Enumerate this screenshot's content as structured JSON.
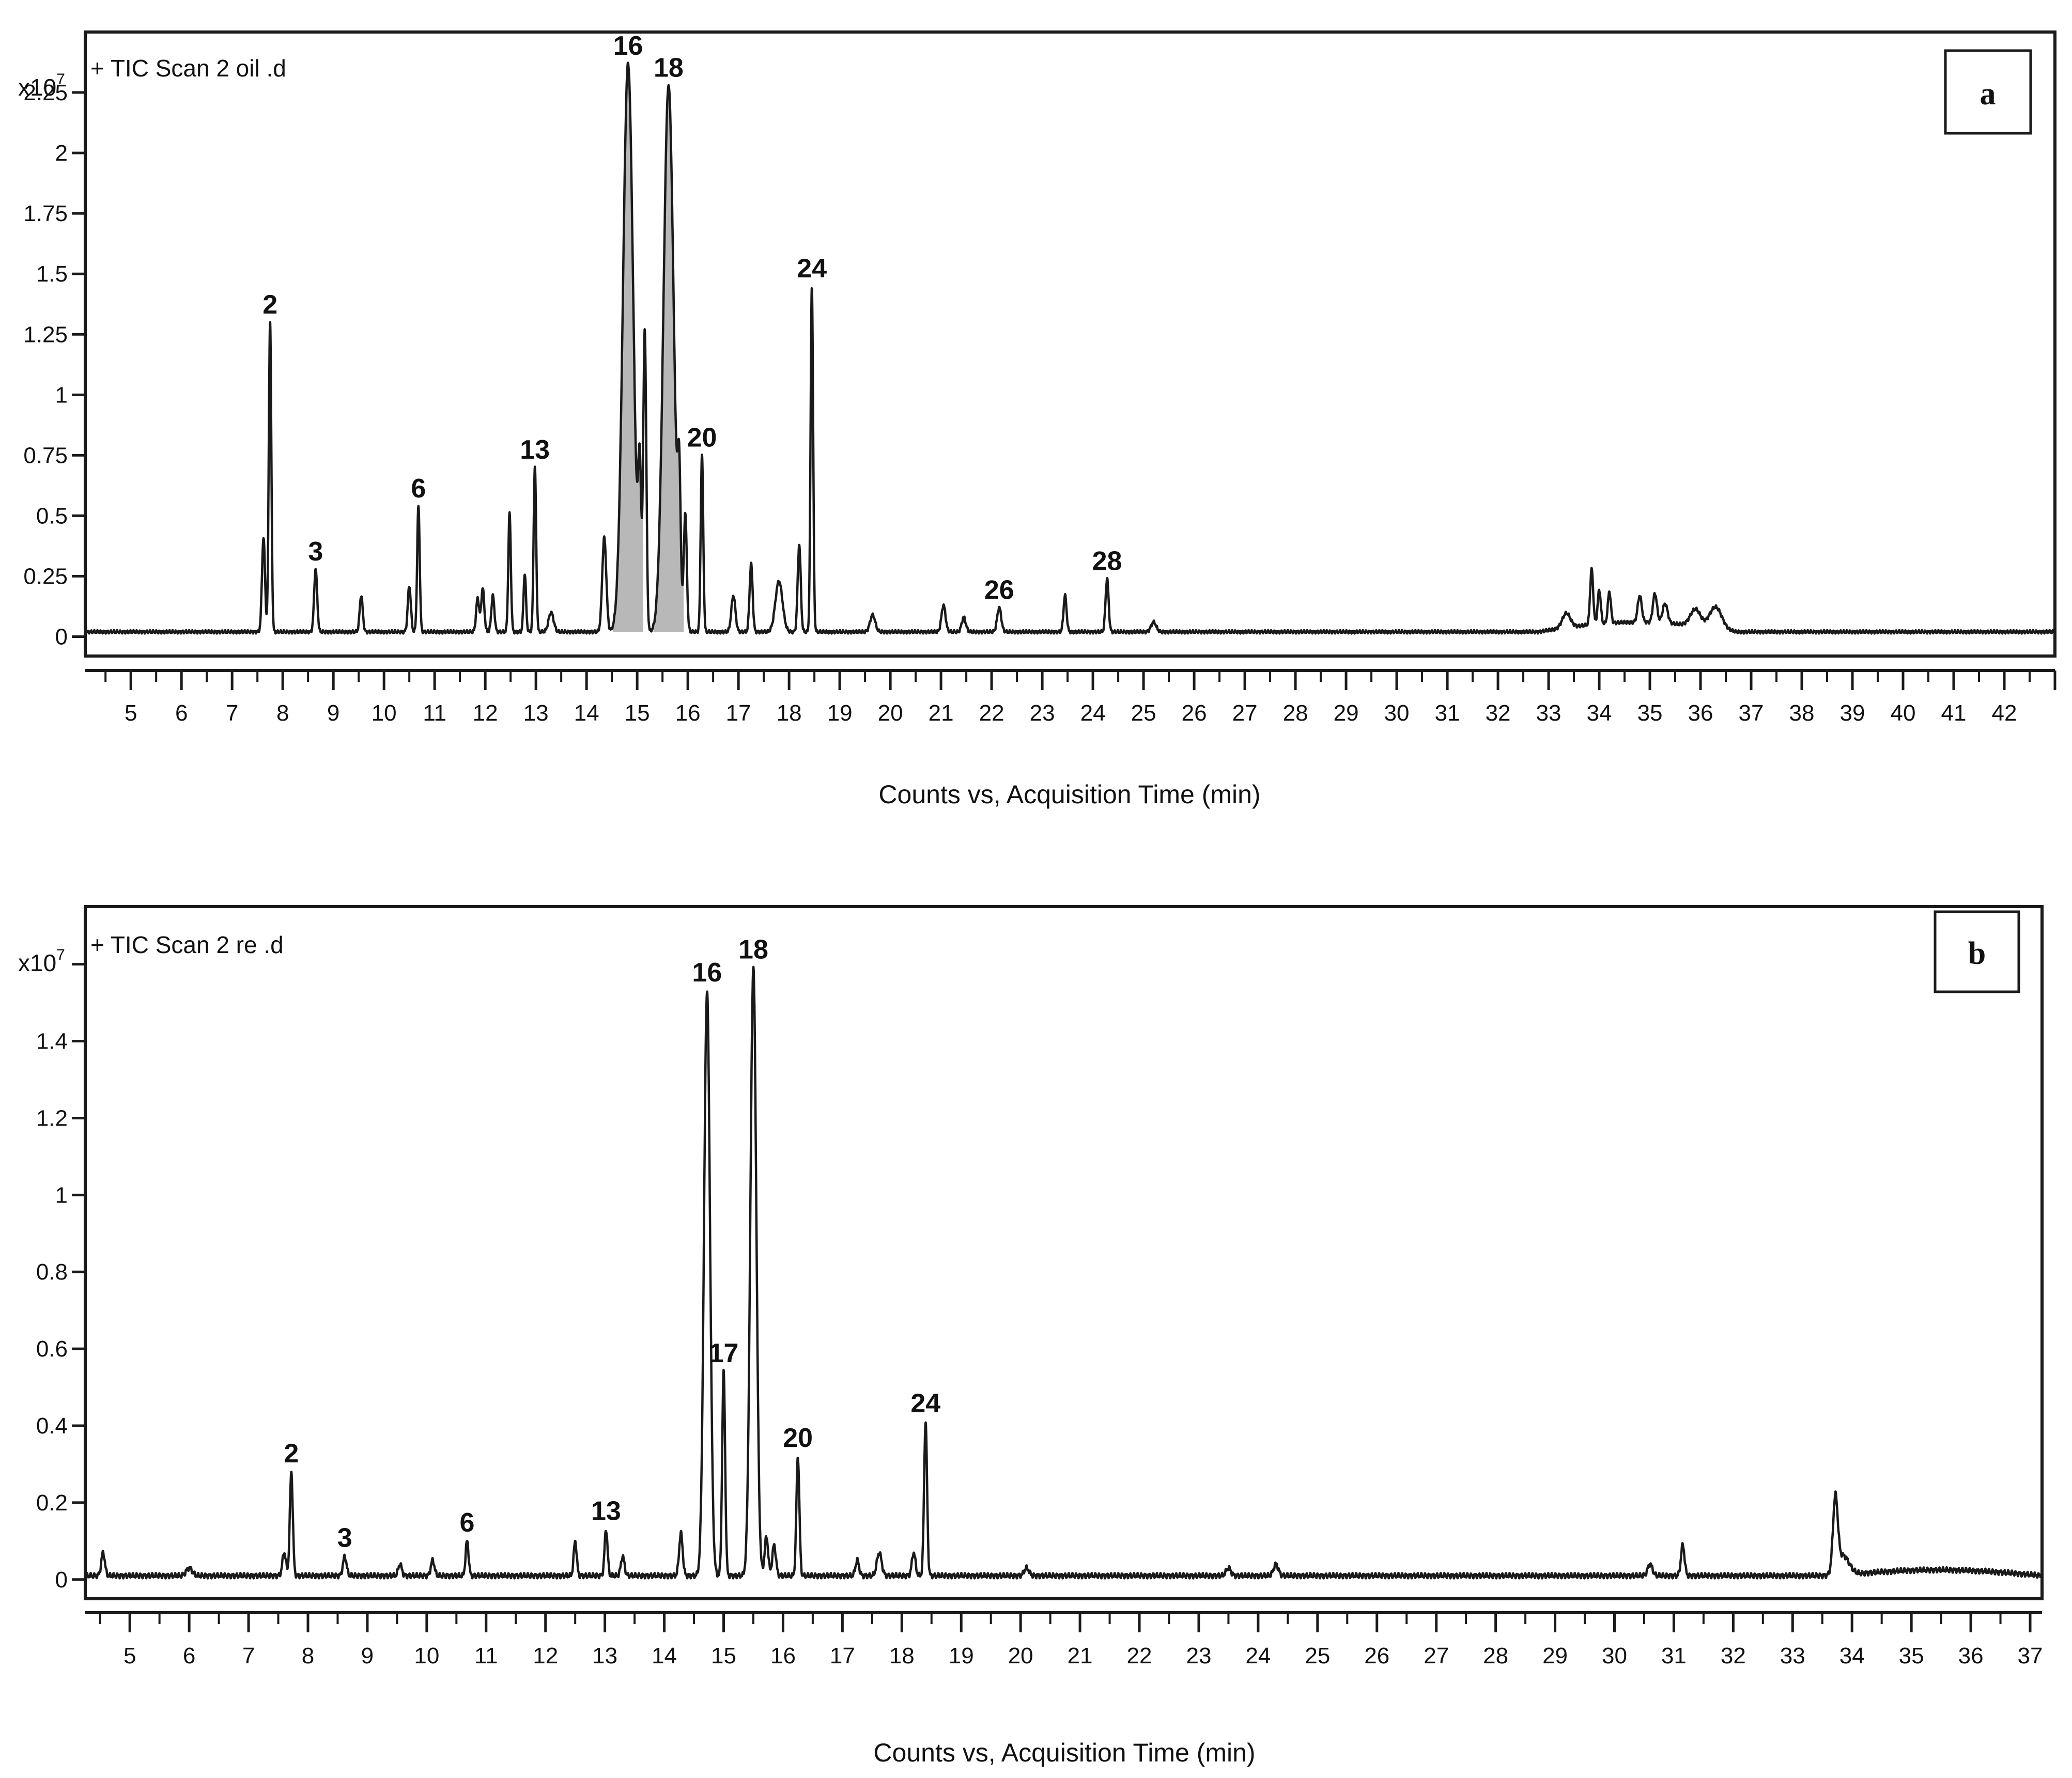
{
  "figure": {
    "background": "#ffffff",
    "line_color": "#1a1a1a",
    "peak_fill": "#b8b8b8"
  },
  "chart_data": [
    {
      "type": "line",
      "panel": "a",
      "header": "+ TIC Scan 2 oil .d",
      "y_multiplier": "x10",
      "y_multiplier_exp": "7",
      "xlabel": "Counts vs, Acquisition Time (min)",
      "xlim": [
        4.1,
        43.0
      ],
      "ylim": [
        -0.08,
        2.5
      ],
      "x_ticks": [
        5,
        6,
        7,
        8,
        9,
        10,
        11,
        12,
        13,
        14,
        15,
        16,
        17,
        18,
        19,
        20,
        21,
        22,
        23,
        24,
        25,
        26,
        27,
        28,
        29,
        30,
        31,
        32,
        33,
        34,
        35,
        36,
        37,
        38,
        39,
        40,
        41,
        42
      ],
      "x_tick_labels": [
        "5",
        "6",
        "7",
        "8",
        "9",
        "10",
        "11",
        "12",
        "13",
        "14",
        "15",
        "16",
        "17",
        "18",
        "19",
        "20",
        "21",
        "22",
        "23",
        "24",
        "25",
        "26",
        "27",
        "28",
        "29",
        "30",
        "31",
        "32",
        "33",
        "34",
        "35",
        "36",
        "37",
        "38",
        "39",
        "40",
        "41",
        "42"
      ],
      "y_ticks": [
        0,
        0.25,
        0.5,
        0.75,
        1,
        1.25,
        1.5,
        1.75,
        2,
        2.25
      ],
      "y_tick_labels": [
        "0",
        "0.25",
        "0.5",
        "0.75",
        "1",
        "1.25",
        "1.5",
        "1.75",
        "2",
        "2.25"
      ],
      "baseline": 0.02,
      "peaks": [
        {
          "t": 7.62,
          "h": 0.39,
          "w": 0.03
        },
        {
          "t": 7.75,
          "h": 1.28,
          "w": 0.025
        },
        {
          "t": 8.65,
          "h": 0.26,
          "w": 0.03
        },
        {
          "t": 9.55,
          "h": 0.15,
          "w": 0.03
        },
        {
          "t": 10.5,
          "h": 0.19,
          "w": 0.03
        },
        {
          "t": 10.68,
          "h": 0.52,
          "w": 0.025
        },
        {
          "t": 11.85,
          "h": 0.14,
          "w": 0.03
        },
        {
          "t": 11.95,
          "h": 0.18,
          "w": 0.03
        },
        {
          "t": 12.15,
          "h": 0.15,
          "w": 0.03
        },
        {
          "t": 12.48,
          "h": 0.49,
          "w": 0.025
        },
        {
          "t": 12.78,
          "h": 0.24,
          "w": 0.025
        },
        {
          "t": 12.98,
          "h": 0.68,
          "w": 0.025
        },
        {
          "t": 13.3,
          "h": 0.08,
          "w": 0.05
        },
        {
          "t": 14.35,
          "h": 0.39,
          "w": 0.04
        },
        {
          "t": 14.82,
          "h": 2.35,
          "w": 0.1
        },
        {
          "t": 15.05,
          "h": 0.6,
          "w": 0.03
        },
        {
          "t": 15.15,
          "h": 1.24,
          "w": 0.03
        },
        {
          "t": 15.62,
          "h": 2.26,
          "w": 0.1
        },
        {
          "t": 15.83,
          "h": 0.52,
          "w": 0.03
        },
        {
          "t": 15.95,
          "h": 0.48,
          "w": 0.03
        },
        {
          "t": 16.28,
          "h": 0.73,
          "w": 0.025
        },
        {
          "t": 16.9,
          "h": 0.15,
          "w": 0.04
        },
        {
          "t": 17.25,
          "h": 0.28,
          "w": 0.03
        },
        {
          "t": 17.8,
          "h": 0.21,
          "w": 0.07
        },
        {
          "t": 18.2,
          "h": 0.36,
          "w": 0.03
        },
        {
          "t": 18.45,
          "h": 1.43,
          "w": 0.025
        },
        {
          "t": 19.65,
          "h": 0.07,
          "w": 0.05
        },
        {
          "t": 21.05,
          "h": 0.11,
          "w": 0.04
        },
        {
          "t": 21.45,
          "h": 0.06,
          "w": 0.04
        },
        {
          "t": 22.15,
          "h": 0.1,
          "w": 0.04
        },
        {
          "t": 23.45,
          "h": 0.15,
          "w": 0.03
        },
        {
          "t": 24.28,
          "h": 0.22,
          "w": 0.03
        },
        {
          "t": 25.2,
          "h": 0.04,
          "w": 0.05
        },
        {
          "t": 33.35,
          "h": 0.06,
          "w": 0.08
        },
        {
          "t": 33.85,
          "h": 0.23,
          "w": 0.03
        },
        {
          "t": 34.0,
          "h": 0.14,
          "w": 0.03
        },
        {
          "t": 34.2,
          "h": 0.13,
          "w": 0.03
        },
        {
          "t": 34.8,
          "h": 0.11,
          "w": 0.04
        },
        {
          "t": 35.1,
          "h": 0.12,
          "w": 0.04
        },
        {
          "t": 35.3,
          "h": 0.08,
          "w": 0.05
        },
        {
          "t": 35.9,
          "h": 0.07,
          "w": 0.1
        },
        {
          "t": 36.3,
          "h": 0.09,
          "w": 0.12
        }
      ],
      "hump": {
        "start": 32.8,
        "end": 36.7,
        "h": 0.04
      },
      "filled_peaks": [
        14.82,
        15.62
      ],
      "peak_labels": [
        {
          "label": "2",
          "t": 7.75,
          "h": 1.28
        },
        {
          "label": "3",
          "t": 8.65,
          "h": 0.26
        },
        {
          "label": "6",
          "t": 10.68,
          "h": 0.52
        },
        {
          "label": "13",
          "t": 12.98,
          "h": 0.68
        },
        {
          "label": "16",
          "t": 14.82,
          "h": 2.35
        },
        {
          "label": "18",
          "t": 15.62,
          "h": 2.26
        },
        {
          "label": "20",
          "t": 16.28,
          "h": 0.73
        },
        {
          "label": "24",
          "t": 18.45,
          "h": 1.43
        },
        {
          "label": "26",
          "t": 22.15,
          "h": 0.1
        },
        {
          "label": "28",
          "t": 24.28,
          "h": 0.22
        }
      ]
    },
    {
      "type": "line",
      "panel": "b",
      "header": "+ TIC Scan 2 re .d",
      "y_multiplier": "x10",
      "y_multiplier_exp": "7",
      "xlabel": "Counts vs, Acquisition Time (min)",
      "xlim": [
        4.25,
        37.2
      ],
      "ylim": [
        -0.05,
        1.75
      ],
      "x_ticks": [
        5,
        6,
        7,
        8,
        9,
        10,
        11,
        12,
        13,
        14,
        15,
        16,
        17,
        18,
        19,
        20,
        21,
        22,
        23,
        24,
        25,
        26,
        27,
        28,
        29,
        30,
        31,
        32,
        33,
        34,
        35,
        36,
        37
      ],
      "x_tick_labels": [
        "5",
        "6",
        "7",
        "8",
        "9",
        "10",
        "11",
        "12",
        "13",
        "14",
        "15",
        "16",
        "17",
        "18",
        "19",
        "20",
        "21",
        "22",
        "23",
        "24",
        "25",
        "26",
        "27",
        "28",
        "29",
        "30",
        "31",
        "32",
        "33",
        "34",
        "35",
        "36",
        "37"
      ],
      "y_ticks": [
        0,
        0.2,
        0.4,
        0.6,
        0.8,
        1,
        1.2,
        1.4,
        1.6
      ],
      "y_tick_labels": [
        "0",
        "0.2",
        "0.4",
        "0.6",
        "0.8",
        "1",
        "1.2",
        "1.4",
        ""
      ],
      "baseline": 0.01,
      "peaks": [
        {
          "t": 4.55,
          "h": 0.06,
          "w": 0.03
        },
        {
          "t": 6.0,
          "h": 0.02,
          "w": 0.05
        },
        {
          "t": 7.6,
          "h": 0.06,
          "w": 0.03
        },
        {
          "t": 7.72,
          "h": 0.27,
          "w": 0.025
        },
        {
          "t": 8.62,
          "h": 0.05,
          "w": 0.03
        },
        {
          "t": 9.55,
          "h": 0.03,
          "w": 0.03
        },
        {
          "t": 10.1,
          "h": 0.04,
          "w": 0.03
        },
        {
          "t": 10.68,
          "h": 0.09,
          "w": 0.025
        },
        {
          "t": 12.5,
          "h": 0.09,
          "w": 0.025
        },
        {
          "t": 13.02,
          "h": 0.12,
          "w": 0.025
        },
        {
          "t": 13.3,
          "h": 0.05,
          "w": 0.03
        },
        {
          "t": 14.28,
          "h": 0.11,
          "w": 0.03
        },
        {
          "t": 14.72,
          "h": 1.52,
          "w": 0.05
        },
        {
          "t": 15.0,
          "h": 0.53,
          "w": 0.025
        },
        {
          "t": 15.5,
          "h": 1.58,
          "w": 0.05
        },
        {
          "t": 15.72,
          "h": 0.1,
          "w": 0.03
        },
        {
          "t": 15.85,
          "h": 0.08,
          "w": 0.03
        },
        {
          "t": 16.25,
          "h": 0.31,
          "w": 0.025
        },
        {
          "t": 17.25,
          "h": 0.04,
          "w": 0.03
        },
        {
          "t": 17.62,
          "h": 0.06,
          "w": 0.04
        },
        {
          "t": 18.2,
          "h": 0.06,
          "w": 0.03
        },
        {
          "t": 18.4,
          "h": 0.4,
          "w": 0.025
        },
        {
          "t": 20.1,
          "h": 0.02,
          "w": 0.04
        },
        {
          "t": 23.5,
          "h": 0.02,
          "w": 0.04
        },
        {
          "t": 24.3,
          "h": 0.03,
          "w": 0.04
        },
        {
          "t": 30.6,
          "h": 0.03,
          "w": 0.04
        },
        {
          "t": 31.15,
          "h": 0.08,
          "w": 0.03
        },
        {
          "t": 33.72,
          "h": 0.19,
          "w": 0.04
        },
        {
          "t": 33.85,
          "h": 0.05,
          "w": 0.1
        }
      ],
      "hump": {
        "start": 33.7,
        "end": 37.2,
        "h": 0.015
      },
      "filled_peaks": [],
      "peak_labels": [
        {
          "label": "2",
          "t": 7.72,
          "h": 0.27
        },
        {
          "label": "3",
          "t": 8.62,
          "h": 0.05
        },
        {
          "label": "6",
          "t": 10.68,
          "h": 0.09
        },
        {
          "label": "13",
          "t": 13.02,
          "h": 0.12
        },
        {
          "label": "16",
          "t": 14.72,
          "h": 1.52
        },
        {
          "label": "17",
          "t": 15.0,
          "h": 0.53
        },
        {
          "label": "18",
          "t": 15.5,
          "h": 1.58
        },
        {
          "label": "20",
          "t": 16.25,
          "h": 0.31
        },
        {
          "label": "24",
          "t": 18.4,
          "h": 0.4
        }
      ]
    }
  ]
}
